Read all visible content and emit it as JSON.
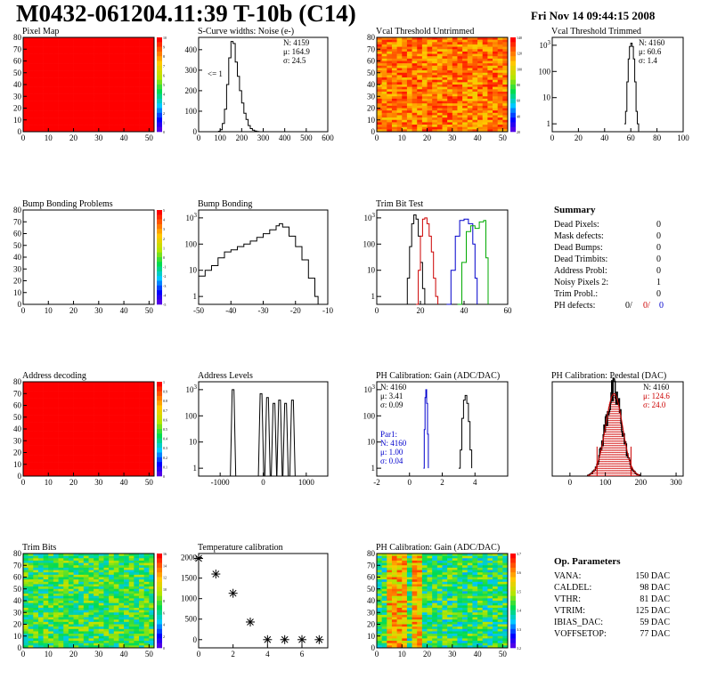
{
  "header": {
    "title": "M0432-061204.11:39 T-10b (C14)",
    "date": "Fri Nov 14 09:44:15 2008"
  },
  "summary": {
    "title": "Summary",
    "rows": [
      {
        "label": "Dead Pixels:",
        "value": "0"
      },
      {
        "label": "Mask defects:",
        "value": "0"
      },
      {
        "label": "Dead Bumps:",
        "value": "0"
      },
      {
        "label": "Dead Trimbits:",
        "value": "0"
      },
      {
        "label": "Address Probl:",
        "value": "0"
      },
      {
        "label": "Noisy Pixels 2:",
        "value": "1"
      },
      {
        "label": "Trim Probl.:",
        "value": "0"
      }
    ],
    "ph_label": "PH defects:",
    "ph_values": [
      {
        "text": "0/",
        "color": "#000000"
      },
      {
        "text": "0/",
        "color": "#cc0000"
      },
      {
        "text": "0",
        "color": "#0000cc"
      }
    ]
  },
  "op_parameters": {
    "title": "Op. Parameters",
    "rows": [
      {
        "label": "VANA:",
        "value": "150 DAC"
      },
      {
        "label": "CALDEL:",
        "value": "98 DAC"
      },
      {
        "label": "VTHR:",
        "value": "81 DAC"
      },
      {
        "label": "VTRIM:",
        "value": "125 DAC"
      },
      {
        "label": "IBIAS_DAC:",
        "value": "59 DAC"
      },
      {
        "label": "VOFFSETOP:",
        "value": "77 DAC"
      }
    ]
  },
  "chart_data": [
    {
      "type": "heatmap",
      "title": "Pixel Map",
      "xlim": [
        0,
        52
      ],
      "ylim": [
        0,
        80
      ],
      "xticks": [
        "0",
        "10",
        "20",
        "30",
        "40",
        "50"
      ],
      "yticks": [
        "0",
        "10",
        "20",
        "30",
        "40",
        "50",
        "60",
        "70",
        "80"
      ],
      "fill": "uniform-red",
      "zlim": [
        0,
        10
      ],
      "zticks": [
        "0",
        "1",
        "2",
        "3",
        "4",
        "5",
        "6",
        "7",
        "8",
        "9",
        "10"
      ]
    },
    {
      "type": "line",
      "title": "S-Curve widths: Noise (e-)",
      "xlim": [
        0,
        600
      ],
      "ylim": [
        0,
        460
      ],
      "xticks": [
        "0",
        "100",
        "200",
        "300",
        "400",
        "500",
        "600"
      ],
      "yticks": [
        "0",
        "100",
        "200",
        "300",
        "400"
      ],
      "stats": [
        "N: 4159",
        "μ: 164.9",
        "σ: 24.5"
      ],
      "annotation": "<= 1",
      "x": [
        90,
        100,
        110,
        120,
        130,
        140,
        150,
        160,
        170,
        180,
        190,
        200,
        210,
        220,
        230,
        240,
        250,
        260,
        270,
        280
      ],
      "y": [
        2,
        10,
        40,
        110,
        230,
        360,
        440,
        430,
        340,
        270,
        200,
        140,
        90,
        60,
        30,
        15,
        8,
        3,
        1,
        0
      ]
    },
    {
      "type": "heatmap",
      "title": "Vcal Threshold Untrimmed",
      "xlim": [
        0,
        52
      ],
      "ylim": [
        0,
        80
      ],
      "xticks": [
        "0",
        "10",
        "20",
        "30",
        "40",
        "50"
      ],
      "yticks": [
        "0",
        "10",
        "20",
        "30",
        "40",
        "50",
        "60",
        "70",
        "80"
      ],
      "fill": "noisy-orange",
      "zlim": [
        0,
        140
      ],
      "zticks": [
        "20",
        "40",
        "60",
        "80",
        "100",
        "120",
        "140"
      ]
    },
    {
      "type": "line",
      "log_y": true,
      "title": "Vcal Threshold Trimmed",
      "xlim": [
        0,
        100
      ],
      "ylim": [
        0.5,
        2000
      ],
      "xticks": [
        "0",
        "20",
        "40",
        "60",
        "80",
        "100"
      ],
      "ytick_values": [
        1,
        10,
        100,
        1000
      ],
      "stats": [
        "N: 4160",
        "μ: 60.6",
        "σ: 1.4"
      ],
      "x": [
        55,
        56,
        57,
        58,
        59,
        60,
        61,
        62,
        63,
        64,
        65,
        66
      ],
      "y": [
        1,
        3,
        40,
        300,
        900,
        1200,
        900,
        300,
        40,
        3,
        1,
        0.5
      ]
    },
    {
      "type": "heatmap",
      "title": "Bump Bonding Problems",
      "xlim": [
        0,
        52
      ],
      "ylim": [
        0,
        80
      ],
      "xticks": [
        "0",
        "10",
        "20",
        "30",
        "40",
        "50"
      ],
      "yticks": [
        "0",
        "10",
        "20",
        "30",
        "40",
        "50",
        "60",
        "70",
        "80"
      ],
      "fill": "empty",
      "zlim": [
        -5,
        5
      ],
      "zticks": [
        "-5",
        "-4",
        "-3",
        "-2",
        "-1",
        "0",
        "1",
        "2",
        "3",
        "4",
        "5"
      ]
    },
    {
      "type": "line",
      "log_y": true,
      "title": "Bump Bonding",
      "xlim": [
        -50,
        -10
      ],
      "ylim": [
        0.5,
        2000
      ],
      "xticks": [
        "-50",
        "-40",
        "-30",
        "-20",
        "-10"
      ],
      "ytick_values": [
        1,
        10,
        100,
        1000
      ],
      "x": [
        -50,
        -48,
        -46,
        -44,
        -42,
        -40,
        -38,
        -36,
        -34,
        -32,
        -30,
        -28,
        -26,
        -25,
        -24,
        -22,
        -20,
        -18,
        -16,
        -14,
        -13
      ],
      "y": [
        6,
        10,
        15,
        30,
        50,
        60,
        80,
        100,
        130,
        180,
        250,
        350,
        500,
        600,
        450,
        200,
        80,
        25,
        5,
        1,
        0.5
      ]
    },
    {
      "type": "line",
      "log_y": true,
      "title": "Trim Bit Test",
      "xlim": [
        0,
        60
      ],
      "ylim": [
        0.5,
        2000
      ],
      "xticks": [
        "0",
        "20",
        "40",
        "60"
      ],
      "ytick_values": [
        1,
        10,
        100,
        1000
      ],
      "series": [
        {
          "color": "#000000",
          "x": [
            13,
            14,
            15,
            16,
            17,
            18,
            19,
            20,
            21,
            22
          ],
          "y": [
            0.5,
            5,
            80,
            600,
            1300,
            900,
            200,
            20,
            2,
            0.5
          ]
        },
        {
          "color": "#cc0000",
          "x": [
            18,
            19,
            20,
            21,
            22,
            23,
            24,
            25,
            26,
            27,
            28
          ],
          "y": [
            0.5,
            10,
            200,
            900,
            1000,
            600,
            200,
            50,
            5,
            1,
            0.5
          ]
        },
        {
          "color": "#0000cc",
          "x": [
            32,
            34,
            36,
            38,
            40,
            42,
            44,
            45,
            46
          ],
          "y": [
            0.5,
            10,
            200,
            800,
            900,
            600,
            100,
            5,
            0.5
          ]
        },
        {
          "color": "#00aa00",
          "x": [
            37,
            39,
            41,
            43,
            45,
            47,
            49,
            50,
            51
          ],
          "y": [
            0.5,
            20,
            300,
            500,
            400,
            700,
            800,
            30,
            0.5
          ]
        }
      ]
    },
    {
      "type": "heatmap",
      "title": "Address decoding",
      "xlim": [
        0,
        52
      ],
      "ylim": [
        0,
        80
      ],
      "xticks": [
        "0",
        "10",
        "20",
        "30",
        "40",
        "50"
      ],
      "yticks": [
        "0",
        "10",
        "20",
        "30",
        "40",
        "50",
        "60",
        "70",
        "80"
      ],
      "fill": "uniform-red",
      "zlim": [
        0,
        1
      ],
      "zticks": [
        "0",
        "0.1",
        "0.2",
        "0.3",
        "0.4",
        "0.5",
        "0.6",
        "0.7",
        "0.8",
        "0.9",
        "1"
      ]
    },
    {
      "type": "line",
      "log_y": true,
      "title": "Address Levels",
      "xlim": [
        -1500,
        1500
      ],
      "ylim": [
        0.5,
        2000
      ],
      "xticks": [
        "-1000",
        "0",
        "1000"
      ],
      "ytick_values": [
        1,
        10,
        100,
        1000
      ],
      "peaks": [
        {
          "x": -700,
          "y": 1000
        },
        {
          "x": -50,
          "y": 700
        },
        {
          "x": 100,
          "y": 500
        },
        {
          "x": 250,
          "y": 300
        },
        {
          "x": 380,
          "y": 400
        },
        {
          "x": 520,
          "y": 300
        },
        {
          "x": 680,
          "y": 400
        }
      ]
    },
    {
      "type": "line",
      "log_y": true,
      "title": "PH Calibration: Gain (ADC/DAC)",
      "xlim": [
        -2,
        6
      ],
      "ylim": [
        0.5,
        2000
      ],
      "xticks": [
        "-2",
        "0",
        "2",
        "4"
      ],
      "ytick_values": [
        1,
        10,
        100,
        1000
      ],
      "stats": [
        "N: 4160",
        "μ: 3.41",
        "σ: 0.09"
      ],
      "stats2": [
        "Par1:",
        "N: 4160",
        "μ: 1.00",
        "σ: 0.04"
      ],
      "series": [
        {
          "color": "#0000cc",
          "x": [
            0.85,
            0.9,
            0.95,
            1.0,
            1.05,
            1.1,
            1.15
          ],
          "y": [
            1,
            30,
            500,
            1000,
            300,
            20,
            1
          ]
        },
        {
          "color": "#000000",
          "x": [
            3.0,
            3.1,
            3.2,
            3.3,
            3.4,
            3.5,
            3.6,
            3.7,
            3.8
          ],
          "y": [
            1,
            5,
            80,
            400,
            600,
            300,
            60,
            5,
            1
          ]
        }
      ]
    },
    {
      "type": "bar",
      "title": "PH Calibration: Pedestal (DAC)",
      "xlim": [
        -50,
        320
      ],
      "ylim": [
        0,
        80
      ],
      "xticks": [
        "0",
        "100",
        "200",
        "300"
      ],
      "stats": [
        "N: 4160",
        "μ: 124.6",
        "σ: 24.0"
      ],
      "mean": 124.6,
      "sigma": 24.0,
      "peak": 70
    },
    {
      "type": "heatmap",
      "title": "Trim Bits",
      "xlim": [
        0,
        52
      ],
      "ylim": [
        0,
        80
      ],
      "xticks": [
        "0",
        "10",
        "20",
        "30",
        "40",
        "50"
      ],
      "yticks": [
        "0",
        "10",
        "20",
        "30",
        "40",
        "50",
        "60",
        "70",
        "80"
      ],
      "fill": "noisy-green",
      "zlim": [
        0,
        16
      ],
      "zticks": [
        "0",
        "2",
        "4",
        "6",
        "8",
        "10",
        "12",
        "14",
        "16"
      ]
    },
    {
      "type": "scatter",
      "title": "Temperature calibration",
      "xlim": [
        0,
        7.5
      ],
      "ylim": [
        -200,
        2100
      ],
      "xticks": [
        "0",
        "2",
        "4",
        "6"
      ],
      "yticks": [
        "0",
        "500",
        "1000",
        "1500",
        "2000"
      ],
      "x": [
        0,
        1,
        2,
        3,
        4,
        5,
        6,
        7
      ],
      "y": [
        1980,
        1600,
        1130,
        430,
        0,
        0,
        0,
        0
      ]
    },
    {
      "type": "heatmap",
      "title": "PH Calibration: Gain (ADC/DAC)",
      "xlim": [
        0,
        52
      ],
      "ylim": [
        0,
        80
      ],
      "xticks": [
        "0",
        "10",
        "20",
        "30",
        "40",
        "50"
      ],
      "yticks": [
        "0",
        "10",
        "20",
        "30",
        "40",
        "50",
        "60",
        "70",
        "80"
      ],
      "fill": "columns-gain",
      "zlim": [
        3.1,
        3.7
      ],
      "zticks": [
        "3.2",
        "3.3",
        "3.4",
        "3.5",
        "3.6",
        "3.7"
      ]
    }
  ]
}
